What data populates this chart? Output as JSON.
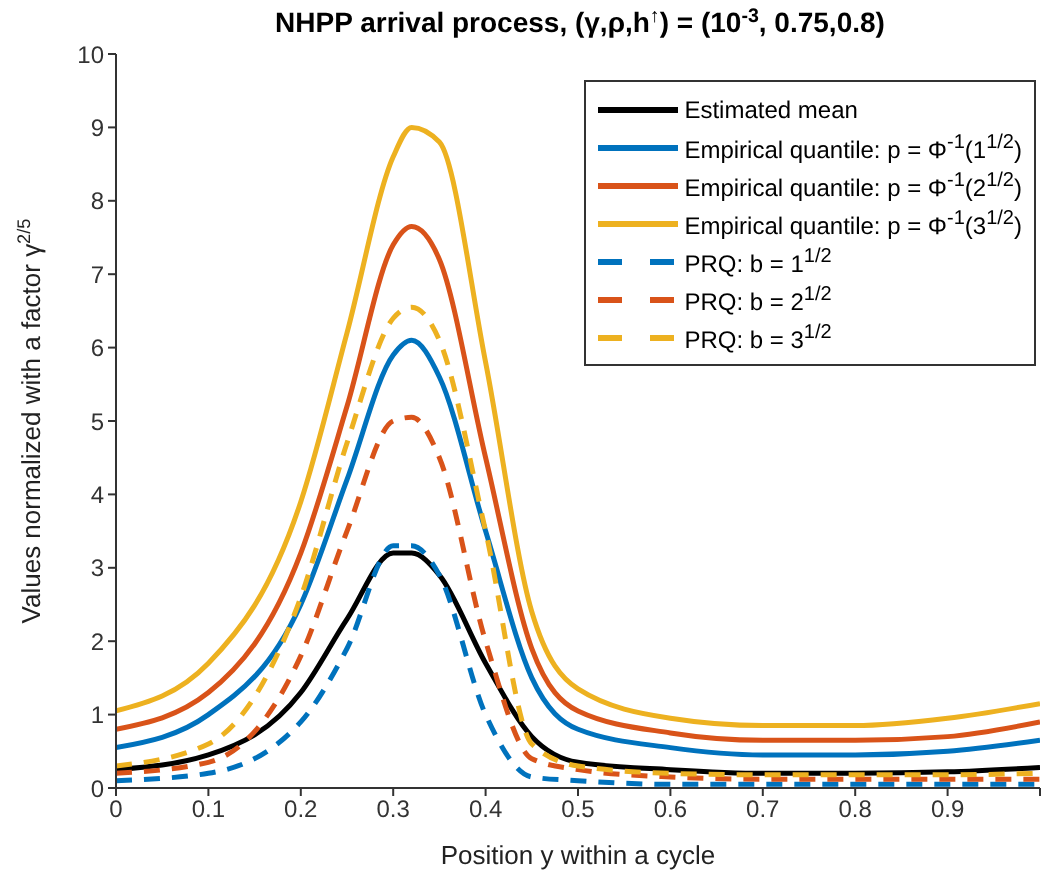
{
  "chart_data": {
    "type": "line",
    "title": "NHPP arrival process, (γ,ρ,h$^{↑}$) = (10$^{-3}$, 0.75,0.8)",
    "xlabel": "Position y within a cycle",
    "ylabel": "Values normalized with a factor γ$^{2/5}$",
    "x": [
      0,
      0.1,
      0.2,
      0.25,
      0.3,
      0.32,
      0.35,
      0.4,
      0.45,
      0.5,
      0.6,
      0.7,
      0.8,
      0.9,
      1.0
    ],
    "series": [
      {
        "name": "Estimated mean",
        "color": "#000000",
        "line_style": "solid",
        "values": [
          0.25,
          0.45,
          1.3,
          2.3,
          3.2,
          3.2,
          2.9,
          1.7,
          0.7,
          0.35,
          0.25,
          0.2,
          0.2,
          0.22,
          0.28
        ]
      },
      {
        "name": "Empirical quantile: p = Φ$^{-1}$(1$^{1/2}$)",
        "color": "#0072bd",
        "line_style": "solid",
        "values": [
          0.55,
          1.0,
          2.5,
          4.2,
          5.9,
          6.1,
          5.6,
          3.5,
          1.5,
          0.8,
          0.55,
          0.45,
          0.45,
          0.5,
          0.65
        ]
      },
      {
        "name": "Empirical quantile: p = Φ$^{-1}$(2$^{1/2}$)",
        "color": "#d95319",
        "line_style": "solid",
        "values": [
          0.8,
          1.3,
          3.2,
          5.2,
          7.4,
          7.65,
          7.2,
          4.5,
          1.9,
          1.05,
          0.75,
          0.65,
          0.65,
          0.7,
          0.9
        ]
      },
      {
        "name": "Empirical quantile: p = Φ$^{-1}$(3$^{1/2}$)",
        "color": "#edb120",
        "line_style": "solid",
        "values": [
          1.05,
          1.7,
          3.9,
          6.2,
          8.6,
          9.0,
          8.8,
          5.8,
          2.4,
          1.35,
          0.95,
          0.85,
          0.85,
          0.95,
          1.15
        ]
      },
      {
        "name": "PRQ: b = 1$^{1/2}$",
        "color": "#0072bd",
        "line_style": "dashed",
        "values": [
          0.1,
          0.2,
          0.9,
          1.9,
          3.3,
          3.3,
          2.9,
          1.0,
          0.15,
          0.1,
          0.05,
          0.05,
          0.05,
          0.05,
          0.05
        ]
      },
      {
        "name": "PRQ: b = 2$^{1/2}$",
        "color": "#d95319",
        "line_style": "dashed",
        "values": [
          0.2,
          0.35,
          1.8,
          3.5,
          5.0,
          5.05,
          4.5,
          2.0,
          0.4,
          0.25,
          0.15,
          0.12,
          0.12,
          0.12,
          0.12
        ]
      },
      {
        "name": "PRQ: b = 3$^{1/2}$",
        "color": "#edb120",
        "line_style": "dashed",
        "values": [
          0.3,
          0.6,
          2.6,
          4.7,
          6.4,
          6.55,
          6.1,
          3.5,
          0.6,
          0.3,
          0.2,
          0.18,
          0.18,
          0.18,
          0.2
        ]
      }
    ],
    "xlim": [
      0,
      1
    ],
    "ylim": [
      0,
      10
    ],
    "xticks": [
      0,
      0.1,
      0.2,
      0.3,
      0.4,
      0.5,
      0.6,
      0.7,
      0.8,
      0.9,
      {
        "value": 1,
        "label": null
      }
    ],
    "yticks": [
      0,
      1,
      2,
      3,
      4,
      5,
      6,
      7,
      8,
      9,
      10
    ],
    "grid": false,
    "legend": "top right",
    "marker": "none"
  }
}
